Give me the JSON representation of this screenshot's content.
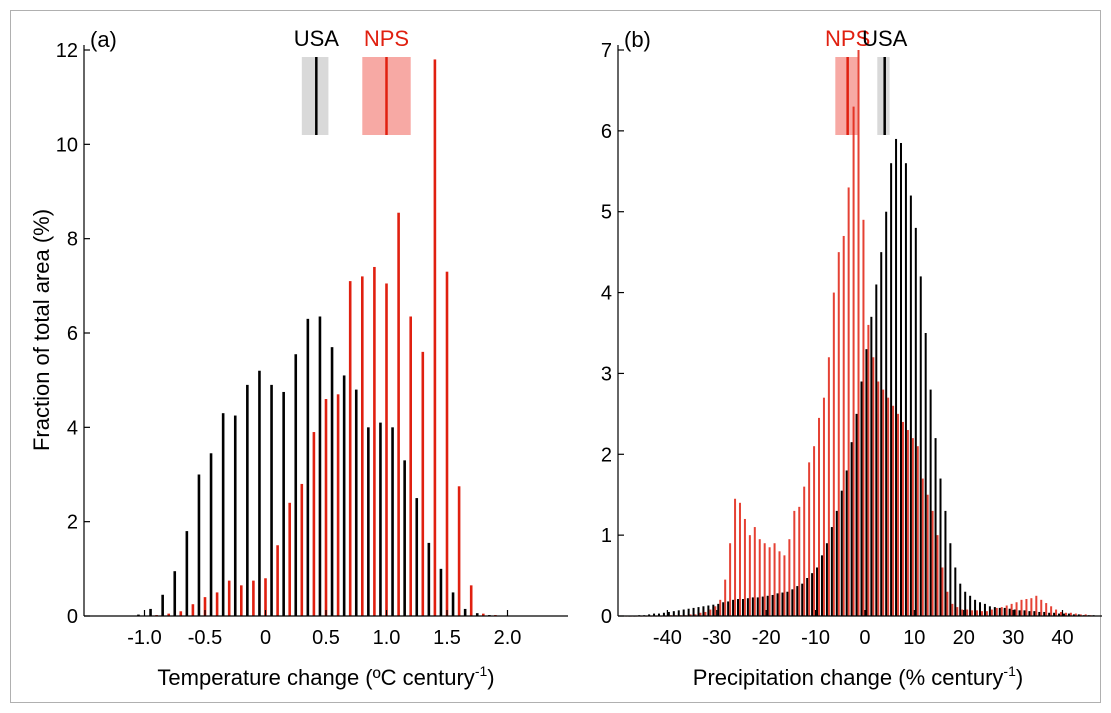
{
  "figure": {
    "ylabel": "Fraction of total area (%)"
  },
  "chart_data": [
    {
      "type": "bar",
      "panel_label": "(a)",
      "xlabel": "Temperature change (ºC century",
      "xlabel_sup": "-1",
      "xlabel_tail": ")",
      "xlim": [
        -1.5,
        2.5
      ],
      "ylim": [
        0,
        12
      ],
      "xticks": [
        -1.0,
        -0.5,
        0,
        0.5,
        1.0,
        1.5,
        2.0
      ],
      "xtick_labels": [
        "-1.0",
        "-0.5",
        "0",
        "0.5",
        "1.0",
        "1.5",
        "2.0"
      ],
      "yticks": [
        0,
        2,
        4,
        6,
        8,
        10,
        12
      ],
      "ytick_labels": [
        "0",
        "2",
        "4",
        "6",
        "8",
        "10",
        "12"
      ],
      "series": [
        {
          "name": "USA",
          "color": "#000000",
          "mean": 0.42,
          "range": [
            0.3,
            0.52
          ],
          "band_color": "#d9d9d9",
          "x": [
            -1.25,
            -1.15,
            -1.05,
            -0.95,
            -0.85,
            -0.75,
            -0.65,
            -0.55,
            -0.45,
            -0.35,
            -0.25,
            -0.15,
            -0.05,
            0.05,
            0.15,
            0.25,
            0.35,
            0.45,
            0.55,
            0.65,
            0.75,
            0.85,
            0.95,
            1.05,
            1.15,
            1.25,
            1.35,
            1.45,
            1.55,
            1.65,
            1.75,
            1.85,
            1.95,
            2.05
          ],
          "values": [
            0.01,
            0.01,
            0.03,
            0.15,
            0.45,
            0.95,
            1.8,
            3.0,
            3.45,
            4.3,
            4.25,
            4.9,
            5.2,
            4.9,
            4.75,
            5.55,
            6.3,
            6.35,
            5.7,
            5.1,
            4.8,
            4.0,
            4.1,
            4.0,
            3.3,
            2.5,
            1.55,
            1.0,
            0.5,
            0.15,
            0.06,
            0.02,
            0.01,
            0.01
          ]
        },
        {
          "name": "NPS",
          "color": "#e02010",
          "mean": 1.0,
          "range": [
            0.8,
            1.2
          ],
          "band_color": "#f7a9a4",
          "x": [
            -1.2,
            -1.1,
            -1.0,
            -0.9,
            -0.8,
            -0.7,
            -0.6,
            -0.5,
            -0.4,
            -0.3,
            -0.2,
            -0.1,
            0.0,
            0.1,
            0.2,
            0.3,
            0.4,
            0.5,
            0.6,
            0.7,
            0.8,
            0.9,
            1.0,
            1.1,
            1.2,
            1.3,
            1.4,
            1.5,
            1.6,
            1.7,
            1.8,
            1.9,
            2.0,
            2.1
          ],
          "values": [
            0.01,
            0.01,
            0.01,
            0.02,
            0.05,
            0.1,
            0.25,
            0.4,
            0.5,
            0.75,
            0.65,
            0.75,
            0.8,
            1.5,
            2.4,
            2.8,
            3.9,
            4.6,
            4.7,
            7.1,
            7.2,
            7.4,
            7.05,
            8.55,
            6.35,
            5.6,
            11.8,
            7.3,
            2.75,
            0.65,
            0.05,
            0.02,
            0.01,
            0.01
          ]
        }
      ]
    },
    {
      "type": "bar",
      "panel_label": "(b)",
      "xlabel": "Precipitation change (% century",
      "xlabel_sup": "-1",
      "xlabel_tail": ")",
      "xlim": [
        -50,
        48
      ],
      "ylim": [
        0,
        7
      ],
      "xticks": [
        -40,
        -30,
        -20,
        -10,
        0,
        10,
        20,
        30,
        40
      ],
      "xtick_labels": [
        "-40",
        "-30",
        "-20",
        "-10",
        "0",
        "10",
        "20",
        "30",
        "40"
      ],
      "yticks": [
        0,
        1,
        2,
        3,
        4,
        5,
        6,
        7
      ],
      "ytick_labels": [
        "0",
        "1",
        "2",
        "3",
        "4",
        "5",
        "6",
        "7"
      ],
      "series": [
        {
          "name": "NPS",
          "color": "#e02010",
          "mean": -3.5,
          "range": [
            -6,
            -1.5
          ],
          "band_color": "#f7a9a4"
        },
        {
          "name": "USA",
          "color": "#000000",
          "mean": 4,
          "range": [
            2.5,
            5
          ],
          "band_color": "#d9d9d9"
        }
      ]
    }
  ]
}
